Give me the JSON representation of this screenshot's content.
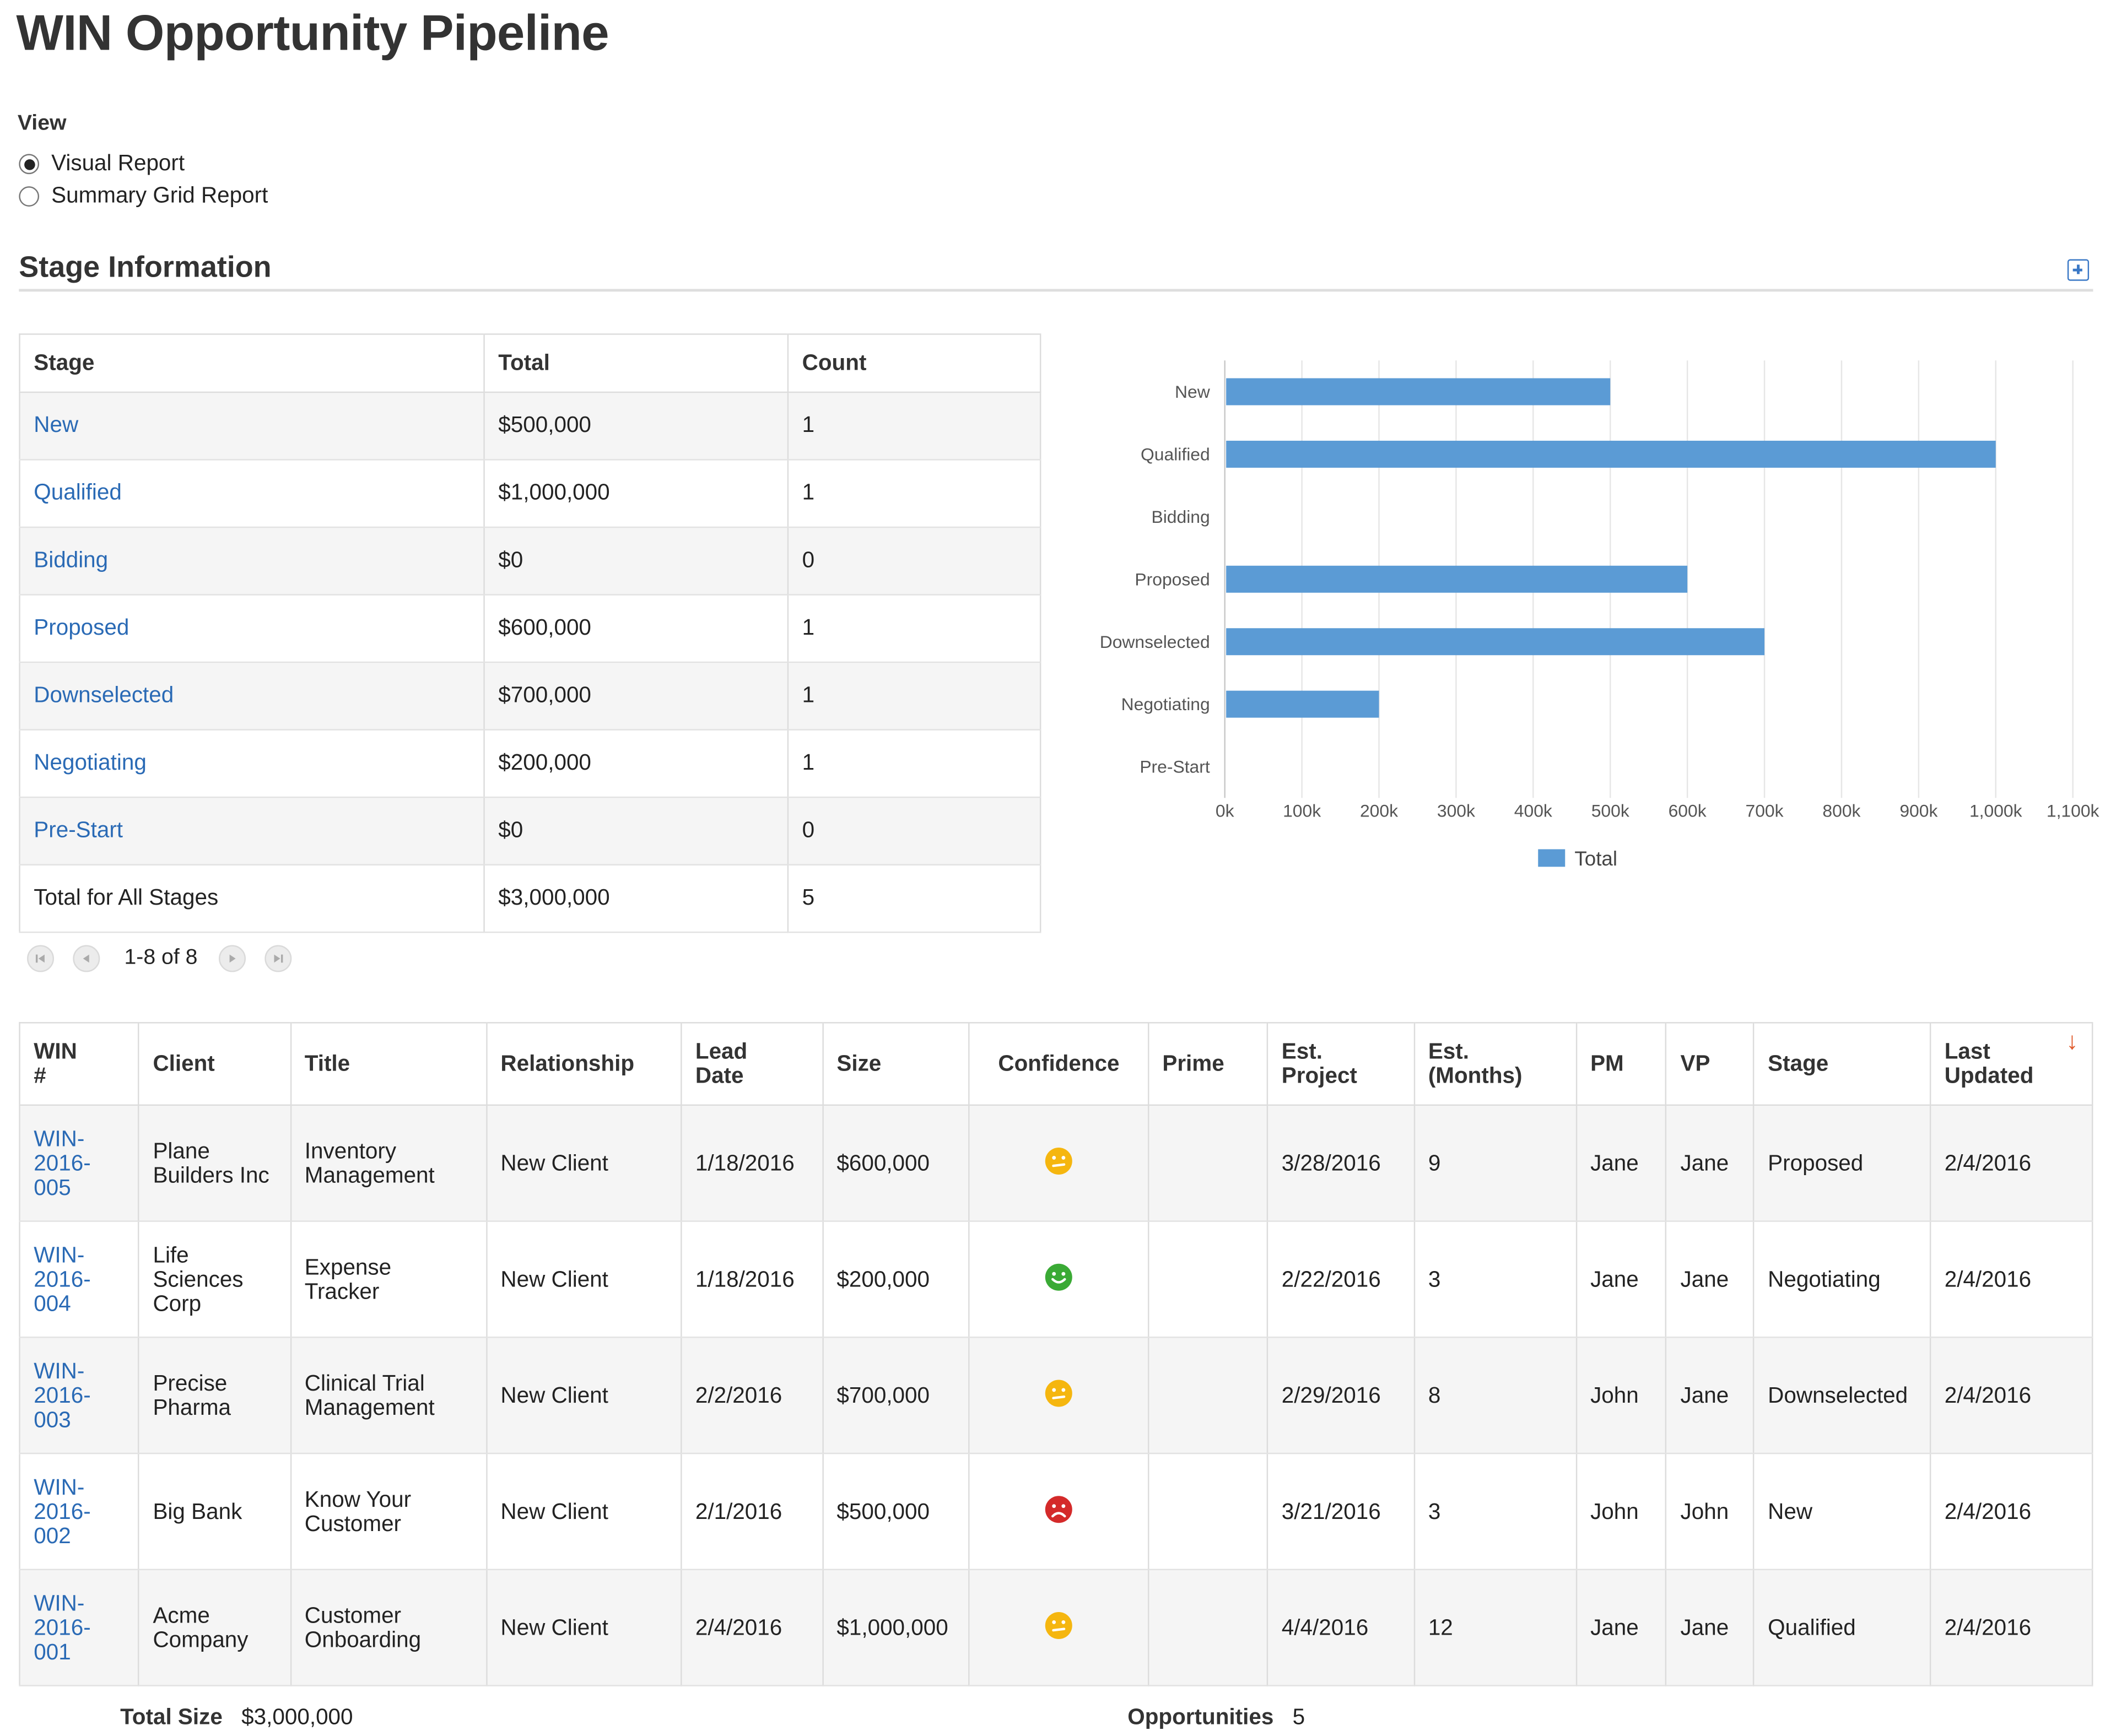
{
  "page_title": "WIN Opportunity Pipeline",
  "view": {
    "label": "View",
    "options": [
      {
        "label": "Visual Report",
        "selected": true
      },
      {
        "label": "Summary Grid Report",
        "selected": false
      }
    ]
  },
  "stage_section": {
    "title": "Stage Information",
    "expand_icon": "plus-square-icon",
    "table": {
      "headers": [
        "Stage",
        "Total",
        "Count"
      ],
      "rows": [
        {
          "stage": "New",
          "total": "$500,000",
          "count": "1"
        },
        {
          "stage": "Qualified",
          "total": "$1,000,000",
          "count": "1"
        },
        {
          "stage": "Bidding",
          "total": "$0",
          "count": "0"
        },
        {
          "stage": "Proposed",
          "total": "$600,000",
          "count": "1"
        },
        {
          "stage": "Downselected",
          "total": "$700,000",
          "count": "1"
        },
        {
          "stage": "Negotiating",
          "total": "$200,000",
          "count": "1"
        },
        {
          "stage": "Pre-Start",
          "total": "$0",
          "count": "0"
        }
      ],
      "total_row": {
        "stage": "Total for All Stages",
        "total": "$3,000,000",
        "count": "5"
      }
    },
    "pager": {
      "info": "1-8 of 8"
    }
  },
  "chart_data": {
    "type": "bar",
    "orientation": "horizontal",
    "categories": [
      "New",
      "Qualified",
      "Bidding",
      "Proposed",
      "Downselected",
      "Negotiating",
      "Pre-Start"
    ],
    "series": [
      {
        "name": "Total",
        "values": [
          500,
          1000,
          0,
          600,
          700,
          200,
          0
        ],
        "color": "#5b9bd5"
      }
    ],
    "xlim": [
      0,
      1100
    ],
    "x_ticks": [
      0,
      100,
      200,
      300,
      400,
      500,
      600,
      700,
      800,
      900,
      1000,
      1100
    ],
    "x_tick_labels": [
      "0k",
      "100k",
      "200k",
      "300k",
      "400k",
      "500k",
      "600k",
      "700k",
      "800k",
      "900k",
      "1,000k",
      "1,100k"
    ],
    "legend": "bottom-center",
    "grid": true
  },
  "grid": {
    "headers": [
      {
        "l1": "WIN",
        "l2": "#"
      },
      {
        "l1": "Client",
        "l2": ""
      },
      {
        "l1": "Title",
        "l2": ""
      },
      {
        "l1": "Relationship",
        "l2": ""
      },
      {
        "l1": "Lead",
        "l2": "Date"
      },
      {
        "l1": "Size",
        "l2": ""
      },
      {
        "l1": "Confidence",
        "l2": ""
      },
      {
        "l1": "Prime",
        "l2": ""
      },
      {
        "l1": "Est.",
        "l2": "Project"
      },
      {
        "l1": "Est.",
        "l2": "(Months)"
      },
      {
        "l1": "PM",
        "l2": ""
      },
      {
        "l1": "VP",
        "l2": ""
      },
      {
        "l1": "Stage",
        "l2": ""
      },
      {
        "l1": "Last",
        "l2": "Updated"
      }
    ],
    "sort_icon": "↓",
    "rows": [
      {
        "win": [
          "WIN-",
          "2016-",
          "005"
        ],
        "client": [
          "Plane",
          "Builders Inc"
        ],
        "title": [
          "Inventory",
          "Management"
        ],
        "relationship": "New Client",
        "lead_date": "1/18/2016",
        "size": "$600,000",
        "confidence": "neutral",
        "prime": "",
        "est_project": "3/28/2016",
        "est_months": "9",
        "pm": "Jane",
        "vp": "Jane",
        "stage": "Proposed",
        "last_updated": "2/4/2016"
      },
      {
        "win": [
          "WIN-",
          "2016-",
          "004"
        ],
        "client": [
          "Life",
          "Sciences",
          "Corp"
        ],
        "title": [
          "Expense",
          "Tracker"
        ],
        "relationship": "New Client",
        "lead_date": "1/18/2016",
        "size": "$200,000",
        "confidence": "happy",
        "prime": "",
        "est_project": "2/22/2016",
        "est_months": "3",
        "pm": "Jane",
        "vp": "Jane",
        "stage": "Negotiating",
        "last_updated": "2/4/2016"
      },
      {
        "win": [
          "WIN-",
          "2016-",
          "003"
        ],
        "client": [
          "Precise",
          "Pharma"
        ],
        "title": [
          "Clinical Trial",
          "Management"
        ],
        "relationship": "New Client",
        "lead_date": "2/2/2016",
        "size": "$700,000",
        "confidence": "neutral",
        "prime": "",
        "est_project": "2/29/2016",
        "est_months": "8",
        "pm": "John",
        "vp": "Jane",
        "stage": "Downselected",
        "last_updated": "2/4/2016"
      },
      {
        "win": [
          "WIN-",
          "2016-",
          "002"
        ],
        "client": [
          "Big Bank"
        ],
        "title": [
          "Know Your",
          "Customer"
        ],
        "relationship": "New Client",
        "lead_date": "2/1/2016",
        "size": "$500,000",
        "confidence": "sad",
        "prime": "",
        "est_project": "3/21/2016",
        "est_months": "3",
        "pm": "John",
        "vp": "John",
        "stage": "New",
        "last_updated": "2/4/2016"
      },
      {
        "win": [
          "WIN-",
          "2016-",
          "001"
        ],
        "client": [
          "Acme",
          "Company"
        ],
        "title": [
          "Customer",
          "Onboarding"
        ],
        "relationship": "New Client",
        "lead_date": "2/4/2016",
        "size": "$1,000,000",
        "confidence": "neutral",
        "prime": "",
        "est_project": "4/4/2016",
        "est_months": "12",
        "pm": "Jane",
        "vp": "Jane",
        "stage": "Qualified",
        "last_updated": "2/4/2016"
      }
    ]
  },
  "confidence_colors": {
    "happy": "#3aaa35",
    "neutral": "#f5b60f",
    "sad": "#d42a2a"
  },
  "footer": {
    "total_size_label": "Total Size",
    "total_size": "$3,000,000",
    "opportunities_label": "Opportunities",
    "opportunities": "5"
  }
}
